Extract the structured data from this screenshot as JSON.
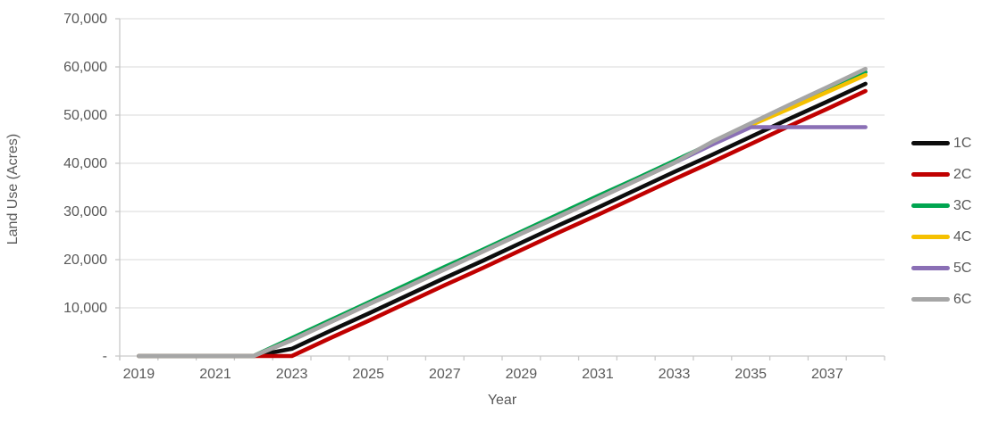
{
  "chart_data": {
    "type": "line",
    "title": "",
    "xlabel": "Year",
    "ylabel": "Land Use (Acres)",
    "x": [
      2019,
      2020,
      2021,
      2022,
      2023,
      2024,
      2025,
      2026,
      2027,
      2028,
      2029,
      2030,
      2031,
      2032,
      2033,
      2034,
      2035,
      2036,
      2037,
      2038
    ],
    "x_tick_labels": [
      "2019",
      "2021",
      "2023",
      "2025",
      "2027",
      "2029",
      "2031",
      "2033",
      "2035",
      "2037"
    ],
    "y_ticks": [
      0,
      10000,
      20000,
      30000,
      40000,
      50000,
      60000,
      70000
    ],
    "y_tick_labels": [
      "-",
      "10,000",
      "20,000",
      "30,000",
      "40,000",
      "50,000",
      "60,000",
      "70,000"
    ],
    "ylim": [
      0,
      70000
    ],
    "grid": true,
    "legend_position": "right",
    "series": [
      {
        "name": "1C",
        "color": "#0D0D0D",
        "values": [
          0,
          0,
          0,
          0,
          1500,
          5200,
          8800,
          12500,
          16200,
          19800,
          23500,
          27200,
          30800,
          34500,
          38200,
          41800,
          45500,
          49200,
          52800,
          56500
        ]
      },
      {
        "name": "2C",
        "color": "#C00000",
        "values": [
          0,
          0,
          0,
          0,
          0,
          3700,
          7300,
          11000,
          14700,
          18300,
          22000,
          25700,
          29300,
          33000,
          36700,
          40300,
          44000,
          47700,
          51300,
          55000
        ]
      },
      {
        "name": "3C",
        "color": "#00A550",
        "values": [
          0,
          0,
          0,
          0,
          3700,
          7400,
          11100,
          14800,
          18500,
          22100,
          25800,
          29500,
          33200,
          36800,
          40500,
          44200,
          47900,
          51600,
          55200,
          58900
        ]
      },
      {
        "name": "4C",
        "color": "#F5C000",
        "values": [
          0,
          0,
          0,
          0,
          3300,
          7000,
          10700,
          14300,
          18000,
          21700,
          25400,
          29000,
          32700,
          36400,
          40100,
          44200,
          47900,
          51300,
          54800,
          58300
        ]
      },
      {
        "name": "5C",
        "color": "#8A6FB5",
        "values": [
          0,
          0,
          0,
          0,
          3300,
          7000,
          10700,
          14300,
          18000,
          21700,
          25400,
          29000,
          32700,
          36400,
          40100,
          43900,
          47500,
          47500,
          47500,
          47500
        ]
      },
      {
        "name": "6C",
        "color": "#A6A6A6",
        "values": [
          0,
          0,
          0,
          0,
          3300,
          7000,
          10700,
          14300,
          18000,
          21700,
          25400,
          29000,
          32700,
          36400,
          40100,
          44500,
          48300,
          52100,
          55800,
          59600
        ]
      }
    ]
  },
  "styles": {
    "grid_color": "#E0E0E0",
    "axis_color": "#C9C9C9",
    "tick_label_color": "#595959",
    "title_color": "#595959",
    "background": "#FFFFFF"
  }
}
